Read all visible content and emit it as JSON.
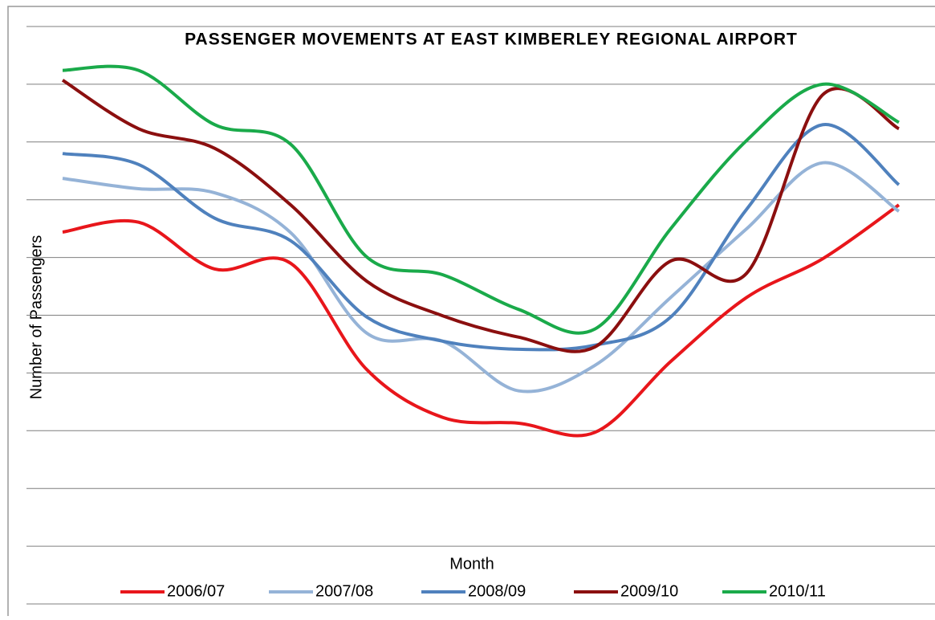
{
  "chart_data": {
    "type": "line",
    "title": "PASSENGER MOVEMENTS AT EAST KIMBERLEY REGIONAL AIRPORT",
    "x_label": "Month",
    "y_label": "Number of Passengers",
    "categories": [
      null,
      null,
      null,
      null,
      null,
      null,
      null,
      null,
      null,
      null,
      null,
      null
    ],
    "ylim": [
      0,
      10
    ],
    "yticks": [
      0,
      1,
      2,
      3,
      4,
      5,
      6,
      7,
      8,
      9,
      10
    ],
    "grid": true,
    "legend": "bottom",
    "series": [
      {
        "name": "2006/07",
        "color": "#e8161b",
        "values": [
          6.44,
          6.61,
          5.8,
          5.9,
          4.06,
          3.23,
          3.13,
          2.97,
          4.2,
          5.31,
          5.98,
          6.91
        ]
      },
      {
        "name": "2007/08",
        "color": "#95b3d7",
        "values": [
          7.37,
          7.19,
          7.12,
          6.43,
          4.69,
          4.55,
          3.69,
          4.13,
          5.31,
          6.5,
          7.64,
          6.8
        ]
      },
      {
        "name": "2008/09",
        "color": "#4f81bd",
        "values": [
          7.8,
          7.61,
          6.68,
          6.29,
          4.97,
          4.55,
          4.41,
          4.48,
          4.97,
          6.84,
          8.3,
          7.26
        ]
      },
      {
        "name": "2009/10",
        "color": "#8b0f0f",
        "values": [
          9.07,
          8.23,
          7.89,
          6.91,
          5.59,
          4.99,
          4.62,
          4.45,
          5.94,
          5.73,
          8.82,
          8.23
        ]
      },
      {
        "name": "2010/11",
        "color": "#1aaa4a",
        "values": [
          9.24,
          9.24,
          8.3,
          7.96,
          6.01,
          5.7,
          5.1,
          4.76,
          6.5,
          8.03,
          9.0,
          8.34
        ]
      }
    ]
  }
}
